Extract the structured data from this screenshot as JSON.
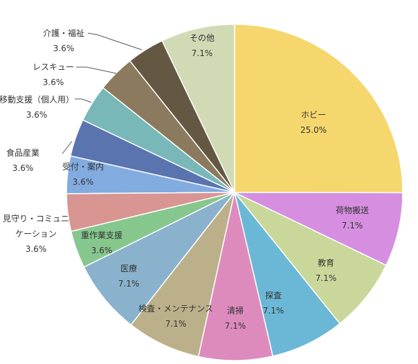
{
  "chart_data": {
    "type": "pie",
    "categories": [
      "ホビー",
      "荷物搬送",
      "教育",
      "探査",
      "清掃",
      "検査・メンテナンス",
      "医療",
      "重作業支援",
      "見守り・コミュニケーション",
      "受付・案内",
      "食品産業",
      "移動支援（個人用）",
      "レスキュー",
      "介護・福祉",
      "その他"
    ],
    "values": [
      25.0,
      7.1,
      7.1,
      7.1,
      7.1,
      7.1,
      7.1,
      3.6,
      3.6,
      3.6,
      3.6,
      3.6,
      3.6,
      3.6,
      7.1
    ],
    "value_labels": [
      "25.0%",
      "7.1%",
      "7.1%",
      "7.1%",
      "7.1%",
      "7.1%",
      "7.1%",
      "3.6%",
      "3.6%",
      "3.6%",
      "3.6%",
      "3.6%",
      "3.6%",
      "3.6%",
      "7.1%"
    ],
    "colors": [
      "#f5d76e",
      "#d68fe0",
      "#c9d89a",
      "#6bb8d6",
      "#dd8bbd",
      "#bcb08a",
      "#8ab2cc",
      "#86c78e",
      "#d99592",
      "#82ace0",
      "#5a74b0",
      "#79b8b8",
      "#8b7a5e",
      "#645843",
      "#d0dbb6"
    ]
  }
}
